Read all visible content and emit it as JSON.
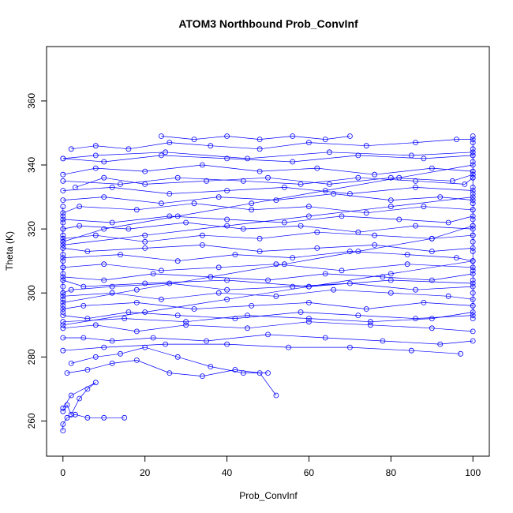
{
  "chart_data": {
    "type": "line",
    "title": "ATOM3 Northbound Prob_ConvInf",
    "xlabel": "Prob_ConvInf",
    "ylabel": "Theta (K)",
    "xlim": [
      -4,
      104
    ],
    "ylim": [
      249,
      377
    ],
    "xticks": [
      0,
      20,
      40,
      60,
      80,
      100
    ],
    "yticks": [
      260,
      280,
      300,
      320,
      340,
      360
    ],
    "grid": false,
    "legend": "none",
    "markers": "open-circle",
    "color": "#0000ff",
    "series": [
      {
        "name": "",
        "x": [
          0,
          0,
          1,
          3,
          6,
          10,
          15
        ],
        "y": [
          257,
          259,
          261,
          262,
          261,
          261,
          261
        ]
      },
      {
        "name": "",
        "x": [
          0,
          1,
          2,
          4,
          6,
          8,
          2,
          0
        ],
        "y": [
          263,
          265,
          262,
          267,
          270,
          272,
          268,
          264
        ]
      },
      {
        "name": "",
        "x": [
          1,
          6,
          12,
          18,
          26,
          34,
          42,
          48,
          52
        ],
        "y": [
          275,
          276,
          278,
          279,
          275,
          274,
          276,
          275,
          268
        ]
      },
      {
        "name": "",
        "x": [
          2,
          8,
          14,
          20,
          28,
          36,
          44,
          50
        ],
        "y": [
          278,
          280,
          281,
          283,
          280,
          277,
          275,
          275
        ]
      },
      {
        "name": "",
        "x": [
          0,
          5,
          12,
          22,
          35,
          50,
          64,
          78,
          92,
          100
        ],
        "y": [
          286,
          286,
          285,
          286,
          285,
          287,
          286,
          285,
          284,
          285
        ]
      },
      {
        "name": "",
        "x": [
          0,
          10,
          25,
          40,
          55,
          70,
          85,
          97
        ],
        "y": [
          282,
          283,
          284,
          284,
          283,
          283,
          282,
          281
        ]
      },
      {
        "name": "",
        "x": [
          0,
          8,
          18,
          30,
          45,
          60,
          75,
          90,
          100
        ],
        "y": [
          289,
          290,
          288,
          290,
          289,
          291,
          290,
          289,
          288
        ]
      },
      {
        "name": "",
        "x": [
          0,
          6,
          16,
          28,
          42,
          58,
          72,
          86,
          100
        ],
        "y": [
          293,
          292,
          294,
          293,
          292,
          294,
          293,
          292,
          293
        ]
      },
      {
        "name": "",
        "x": [
          100,
          88,
          74,
          60,
          46,
          32,
          18,
          5,
          0
        ],
        "y": [
          296,
          297,
          295,
          297,
          296,
          295,
          297,
          296,
          295
        ]
      },
      {
        "name": "",
        "x": [
          0,
          12,
          24,
          38,
          52,
          66,
          80,
          94,
          100
        ],
        "y": [
          299,
          300,
          298,
          300,
          299,
          301,
          300,
          299,
          298
        ]
      },
      {
        "name": "",
        "x": [
          100,
          86,
          70,
          56,
          40,
          26,
          12,
          2,
          0
        ],
        "y": [
          302,
          301,
          303,
          302,
          301,
          303,
          302,
          301,
          300
        ]
      },
      {
        "name": "",
        "x": [
          0,
          10,
          22,
          36,
          50,
          64,
          78,
          90,
          100
        ],
        "y": [
          305,
          304,
          306,
          305,
          304,
          306,
          305,
          304,
          306
        ]
      },
      {
        "name": "",
        "x": [
          100,
          84,
          68,
          52,
          38,
          24,
          10,
          0
        ],
        "y": [
          308,
          309,
          307,
          309,
          308,
          307,
          309,
          308
        ]
      },
      {
        "name": "",
        "x": [
          0,
          14,
          28,
          42,
          56,
          70,
          84,
          96,
          100
        ],
        "y": [
          311,
          312,
          310,
          312,
          311,
          313,
          312,
          311,
          310
        ]
      },
      {
        "name": "",
        "x": [
          100,
          90,
          76,
          62,
          48,
          34,
          20,
          6,
          0
        ],
        "y": [
          314,
          313,
          315,
          314,
          313,
          315,
          314,
          313,
          314
        ]
      },
      {
        "name": "",
        "x": [
          0,
          8,
          20,
          34,
          48,
          62,
          76,
          90,
          100
        ],
        "y": [
          317,
          318,
          316,
          318,
          317,
          319,
          318,
          317,
          318
        ]
      },
      {
        "name": "",
        "x": [
          100,
          86,
          72,
          58,
          44,
          30,
          16,
          4,
          0
        ],
        "y": [
          320,
          321,
          319,
          321,
          320,
          322,
          320,
          321,
          320
        ]
      },
      {
        "name": "",
        "x": [
          0,
          12,
          26,
          40,
          54,
          68,
          82,
          94,
          100
        ],
        "y": [
          323,
          322,
          324,
          323,
          322,
          324,
          323,
          322,
          324
        ]
      },
      {
        "name": "",
        "x": [
          100,
          88,
          74,
          60,
          46,
          32,
          18,
          4,
          0
        ],
        "y": [
          326,
          327,
          325,
          327,
          326,
          328,
          326,
          327,
          325
        ]
      },
      {
        "name": "",
        "x": [
          0,
          10,
          24,
          38,
          52,
          66,
          80,
          92,
          100
        ],
        "y": [
          329,
          330,
          328,
          330,
          329,
          331,
          329,
          330,
          329
        ]
      },
      {
        "name": "",
        "x": [
          100,
          86,
          70,
          54,
          40,
          26,
          12,
          0
        ],
        "y": [
          332,
          333,
          331,
          333,
          332,
          331,
          333,
          332
        ]
      },
      {
        "name": "",
        "x": [
          0,
          14,
          28,
          44,
          58,
          72,
          86,
          98,
          100
        ],
        "y": [
          335,
          334,
          336,
          335,
          334,
          336,
          335,
          334,
          336
        ]
      },
      {
        "name": "",
        "x": [
          100,
          90,
          76,
          62,
          48,
          34,
          20,
          8,
          0
        ],
        "y": [
          338,
          339,
          337,
          339,
          338,
          340,
          338,
          339,
          337
        ]
      },
      {
        "name": "",
        "x": [
          0,
          10,
          24,
          40,
          56,
          72,
          88,
          100
        ],
        "y": [
          342,
          341,
          343,
          342,
          341,
          343,
          342,
          343
        ]
      },
      {
        "name": "",
        "x": [
          2,
          8,
          16,
          26,
          36,
          48,
          60,
          74,
          86,
          96,
          100
        ],
        "y": [
          345,
          346,
          345,
          347,
          346,
          345,
          347,
          346,
          347,
          348,
          348
        ]
      },
      {
        "name": "",
        "x": [
          24,
          32,
          40,
          48,
          56,
          64,
          70
        ],
        "y": [
          349,
          348,
          349,
          348,
          349,
          348,
          349
        ]
      },
      {
        "name": "",
        "x": [
          3,
          10,
          20,
          35,
          50,
          65,
          80,
          95,
          100
        ],
        "y": [
          333,
          336,
          334,
          335,
          336,
          334,
          336,
          335,
          337
        ]
      },
      {
        "name": "",
        "x": [
          100,
          80,
          60,
          40,
          20,
          5,
          0
        ],
        "y": [
          303,
          304,
          302,
          304,
          303,
          302,
          304
        ]
      },
      {
        "name": "",
        "x": [
          0,
          15,
          30,
          45,
          60,
          75,
          90,
          100
        ],
        "y": [
          291,
          292,
          291,
          293,
          292,
          291,
          292,
          294
        ]
      },
      {
        "name": "",
        "x": [
          100,
          85,
          65,
          45,
          25,
          8,
          0
        ],
        "y": [
          344,
          343,
          344,
          342,
          344,
          343,
          342
        ]
      },
      {
        "name": "",
        "x": [
          0,
          20,
          40,
          60,
          80,
          100
        ],
        "y": [
          315,
          318,
          321,
          324,
          327,
          330
        ]
      },
      {
        "name": "",
        "x": [
          100,
          80,
          60,
          40,
          20,
          0
        ],
        "y": [
          310,
          306,
          302,
          298,
          294,
          290
        ]
      },
      {
        "name": "",
        "x": [
          0,
          18,
          36,
          54,
          72,
          90,
          100
        ],
        "y": [
          297,
          301,
          305,
          309,
          313,
          317,
          321
        ]
      },
      {
        "name": "",
        "x": [
          100,
          82,
          64,
          46,
          28,
          10,
          0
        ],
        "y": [
          340,
          336,
          332,
          328,
          324,
          320,
          316
        ]
      },
      {
        "name": "",
        "x": [
          100,
          100,
          100,
          100,
          100,
          100,
          100,
          100,
          100,
          100,
          100,
          100,
          100,
          100,
          100,
          100,
          100,
          100,
          100,
          100,
          100,
          100
        ],
        "y": [
          349,
          347,
          345,
          343,
          341,
          338,
          336,
          333,
          331,
          328,
          326,
          323,
          321,
          318,
          316,
          313,
          310,
          307,
          304,
          300,
          296,
          292
        ]
      },
      {
        "name": "",
        "x": [
          0,
          0,
          0,
          0,
          0,
          0,
          0,
          0,
          0,
          0,
          0,
          0,
          0,
          0,
          0,
          0,
          0
        ],
        "y": [
          327,
          324,
          322,
          320,
          318,
          316,
          314,
          312,
          310,
          308,
          306,
          304,
          302,
          300,
          298,
          296,
          294
        ]
      }
    ]
  }
}
